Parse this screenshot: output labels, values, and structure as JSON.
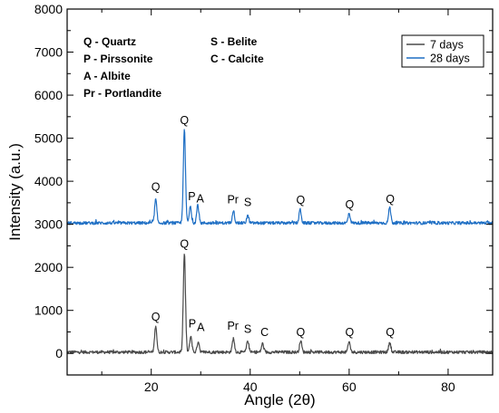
{
  "chart_data": {
    "type": "line",
    "xlabel": "Angle (2θ)",
    "ylabel": "Intensity (a.u.)",
    "xlim": [
      3,
      89
    ],
    "ylim": [
      -500,
      8000
    ],
    "xticks": [
      20,
      40,
      60,
      80
    ],
    "yticks": [
      0,
      1000,
      2000,
      3000,
      4000,
      5000,
      6000,
      7000,
      8000
    ],
    "grid": false,
    "legend_position": "top-right",
    "colors": {
      "7 days": "#4a4a4a",
      "28 days": "#1f6fc4"
    },
    "series": [
      {
        "name": "7 days",
        "baseline": 30,
        "peaks": [
          {
            "x": 20.9,
            "y": 650
          },
          {
            "x": 26.7,
            "y": 2330
          },
          {
            "x": 28.0,
            "y": 400
          },
          {
            "x": 29.5,
            "y": 280
          },
          {
            "x": 36.6,
            "y": 350
          },
          {
            "x": 39.5,
            "y": 300
          },
          {
            "x": 42.5,
            "y": 230
          },
          {
            "x": 50.2,
            "y": 300
          },
          {
            "x": 60.0,
            "y": 270
          },
          {
            "x": 68.2,
            "y": 260
          }
        ]
      },
      {
        "name": "28 days",
        "baseline": 3030,
        "peaks": [
          {
            "x": 20.9,
            "y": 3580
          },
          {
            "x": 26.7,
            "y": 5200
          },
          {
            "x": 27.9,
            "y": 3400
          },
          {
            "x": 29.4,
            "y": 3450
          },
          {
            "x": 36.6,
            "y": 3330
          },
          {
            "x": 39.5,
            "y": 3200
          },
          {
            "x": 50.1,
            "y": 3350
          },
          {
            "x": 60.0,
            "y": 3250
          },
          {
            "x": 68.2,
            "y": 3400
          }
        ]
      }
    ],
    "annotations": [
      {
        "text": "Q",
        "x": 20.9,
        "y": 3780
      },
      {
        "text": "Q",
        "x": 26.7,
        "y": 5330
      },
      {
        "text": "P",
        "x": 28.2,
        "y": 3560
      },
      {
        "text": "A",
        "x": 29.9,
        "y": 3510
      },
      {
        "text": "Pr",
        "x": 36.5,
        "y": 3490
      },
      {
        "text": "S",
        "x": 39.5,
        "y": 3420
      },
      {
        "text": "Q",
        "x": 50.2,
        "y": 3480
      },
      {
        "text": "Q",
        "x": 60.1,
        "y": 3370
      },
      {
        "text": "Q",
        "x": 68.3,
        "y": 3500
      },
      {
        "text": "Q",
        "x": 20.9,
        "y": 760
      },
      {
        "text": "Q",
        "x": 26.7,
        "y": 2460
      },
      {
        "text": "P",
        "x": 28.3,
        "y": 600
      },
      {
        "text": "A",
        "x": 30.0,
        "y": 520
      },
      {
        "text": "Pr",
        "x": 36.5,
        "y": 550
      },
      {
        "text": "S",
        "x": 39.5,
        "y": 480
      },
      {
        "text": "C",
        "x": 42.9,
        "y": 400
      },
      {
        "text": "Q",
        "x": 50.2,
        "y": 400
      },
      {
        "text": "Q",
        "x": 60.1,
        "y": 400
      },
      {
        "text": "Q",
        "x": 68.3,
        "y": 400
      }
    ],
    "phase_key": [
      [
        "Q - Quartz",
        "S - Belite"
      ],
      [
        "P - Pirssonite",
        "C - Calcite"
      ],
      [
        "A - Albite",
        ""
      ],
      [
        "Pr - Portlandite",
        ""
      ]
    ]
  }
}
